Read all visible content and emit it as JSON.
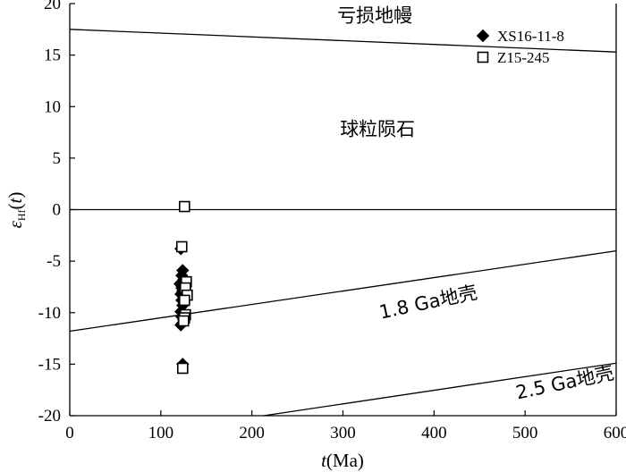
{
  "chart_data": {
    "type": "scatter",
    "xlabel": {
      "italic": "t",
      "rest": "(Ma)"
    },
    "ylabel": {
      "epsilon": "ε",
      "sub": "Hf",
      "open": "(",
      "t": "t",
      "close": ")"
    },
    "xlim": [
      0,
      600
    ],
    "ylim": [
      -20,
      20
    ],
    "xticks": [
      0,
      100,
      200,
      300,
      400,
      500,
      600
    ],
    "yticks": [
      20,
      15,
      10,
      5,
      0,
      -5,
      -10,
      -15,
      -20
    ],
    "grid": false,
    "legend_position": "top-right",
    "reference_lines": [
      {
        "label": "亏损地幔",
        "x": [
          0,
          600
        ],
        "y": [
          17.5,
          15.3
        ]
      },
      {
        "label": "",
        "x": [
          0,
          600
        ],
        "y": [
          0,
          0
        ]
      },
      {
        "label": "1.8 Ga地壳",
        "x": [
          0,
          600
        ],
        "y": [
          -11.8,
          -4.0
        ]
      },
      {
        "label": "2.5 Ga地壳",
        "x": [
          213,
          600
        ],
        "y": [
          -20,
          -14.9
        ]
      }
    ],
    "annotations": [
      {
        "text": "亏损地幔",
        "x": 335,
        "y": 18.2
      },
      {
        "text": "球粒陨石",
        "x": 338,
        "y": 7.2
      },
      {
        "text": "1.8 Ga地壳",
        "x": 395,
        "y": -9.6
      },
      {
        "text": "2.5 Ga地壳",
        "x": 545,
        "y": -17.4
      }
    ],
    "series": [
      {
        "name": "XS16-11-8",
        "marker": "filled-diamond",
        "x": [
          122,
          124,
          123,
          125,
          121,
          123,
          124,
          122,
          125,
          123,
          124,
          122,
          123,
          125,
          124,
          122,
          123,
          124
        ],
        "y": [
          -3.8,
          -5.9,
          -6.4,
          -6.8,
          -7.2,
          -7.6,
          -7.9,
          -8.2,
          -8.5,
          -8.8,
          -9.3,
          -9.9,
          -10.4,
          -10.7,
          -11.0,
          -11.2,
          -7.4,
          -15.0
        ]
      },
      {
        "name": "Z15-245",
        "marker": "open-square",
        "x": [
          126,
          123,
          128,
          127,
          129,
          126,
          127,
          126,
          125,
          124
        ],
        "y": [
          0.3,
          -3.6,
          -7.0,
          -7.6,
          -8.3,
          -8.8,
          -10.2,
          -10.5,
          -10.8,
          -15.4
        ]
      }
    ]
  }
}
